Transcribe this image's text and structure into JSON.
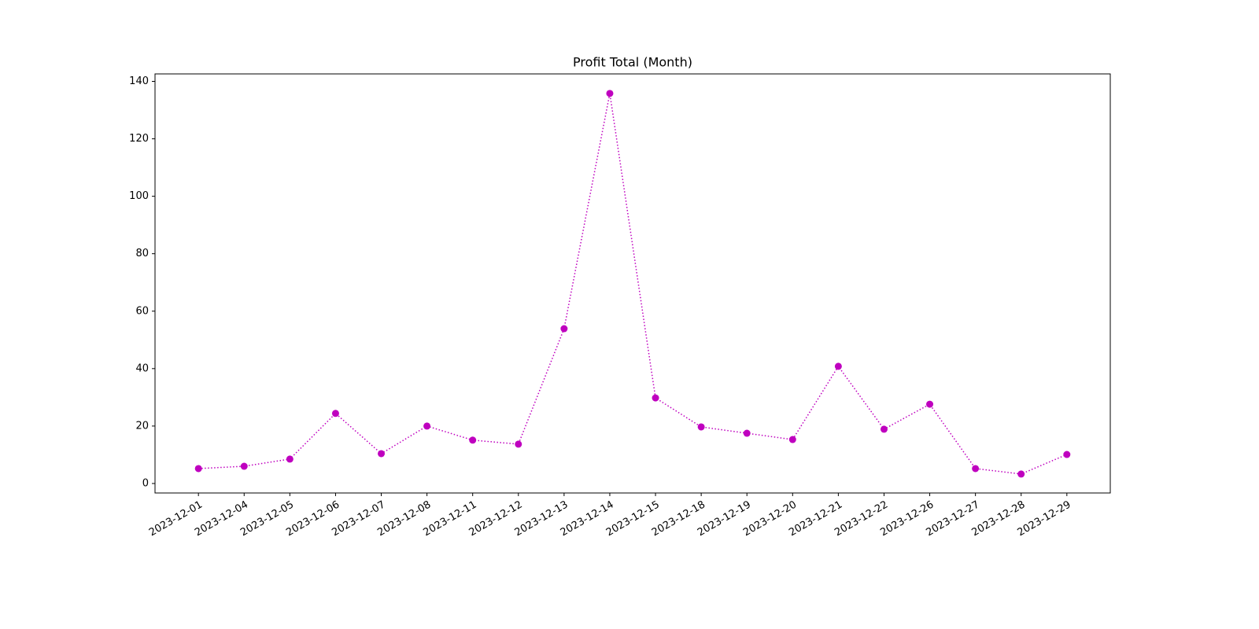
{
  "chart_data": {
    "type": "line",
    "title": "Profit Total (Month)",
    "categories": [
      "2023-12-01",
      "2023-12-04",
      "2023-12-05",
      "2023-12-06",
      "2023-12-07",
      "2023-12-08",
      "2023-12-11",
      "2023-12-12",
      "2023-12-13",
      "2023-12-14",
      "2023-12-15",
      "2023-12-18",
      "2023-12-19",
      "2023-12-20",
      "2023-12-21",
      "2023-12-22",
      "2023-12-26",
      "2023-12-27",
      "2023-12-28",
      "2023-12-29"
    ],
    "values": [
      5.2,
      6.0,
      8.5,
      24.4,
      10.4,
      20.0,
      15.1,
      13.7,
      53.9,
      135.8,
      29.8,
      19.7,
      17.5,
      15.3,
      40.8,
      18.9,
      27.6,
      5.2,
      3.3,
      10.1
    ],
    "color": "#bf00bf",
    "linestyle": "dotted",
    "marker": "circle",
    "ylim": [
      -3.3,
      142.6
    ],
    "yticks": [
      0,
      20,
      40,
      60,
      80,
      100,
      120,
      140
    ]
  }
}
